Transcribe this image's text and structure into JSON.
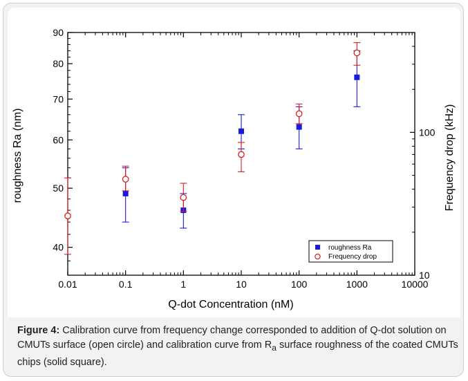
{
  "colors": {
    "series_roughness": "#1a1adf",
    "series_frequency": "#e01b1b",
    "axis": "#000000"
  },
  "caption": {
    "label": "Figure 4:",
    "text_before_sub": " Calibration curve from frequency change corresponded to addition of Q-dot solution on CMUTs surface (open circle) and calibration curve from R",
    "sub": "a",
    "text_after_sub": " surface roughness of the coated CMUTs chips (solid square)."
  },
  "chart_data": {
    "type": "scatter",
    "xlabel": "Q-dot Concentration (nM)",
    "ylabel": "roughness Ra (nm)",
    "y2label": "Frequency drop (kHz)",
    "x_scale": "log",
    "y_scale": "log",
    "y2_scale": "log",
    "xlim": [
      0.01,
      10000
    ],
    "ylim": [
      36,
      90
    ],
    "y2lim": [
      10,
      500
    ],
    "x_ticks": [
      0.01,
      0.1,
      1,
      10,
      100,
      1000,
      10000
    ],
    "x_tick_labels": [
      "0.01",
      "0.1",
      "1",
      "10",
      "100",
      "1000",
      "10000"
    ],
    "y_ticks": [
      40,
      50,
      60,
      70,
      80,
      90
    ],
    "y_tick_labels": [
      "40",
      "50",
      "60",
      "70",
      "80",
      "90"
    ],
    "y2_ticks": [
      10,
      100
    ],
    "y2_tick_labels": [
      "10",
      "100"
    ],
    "legend_position": "bottom-right",
    "series": [
      {
        "name": "roughness Ra",
        "axis": "left",
        "marker": "filled-square",
        "points": [
          {
            "x": 0.1,
            "y": 49,
            "err_low": 44,
            "err_high": 54
          },
          {
            "x": 1,
            "y": 46,
            "err_low": 43,
            "err_high": 49
          },
          {
            "x": 10,
            "y": 62,
            "err_low": 58,
            "err_high": 66
          },
          {
            "x": 100,
            "y": 63,
            "err_low": 58,
            "err_high": 68
          },
          {
            "x": 1000,
            "y": 76,
            "err_low": 68,
            "err_high": 84
          }
        ]
      },
      {
        "name": "Frequency drop",
        "axis": "right",
        "marker": "open-circle",
        "points": [
          {
            "x": 0.01,
            "y": 26,
            "err_low": 14,
            "err_high": 48
          },
          {
            "x": 0.1,
            "y": 47,
            "err_low": 39,
            "err_high": 58
          },
          {
            "x": 1,
            "y": 35,
            "err_low": 28,
            "err_high": 44
          },
          {
            "x": 10,
            "y": 70,
            "err_low": 53,
            "err_high": 85
          },
          {
            "x": 100,
            "y": 135,
            "err_low": 115,
            "err_high": 158
          },
          {
            "x": 1000,
            "y": 360,
            "err_low": 295,
            "err_high": 425
          }
        ]
      }
    ]
  }
}
